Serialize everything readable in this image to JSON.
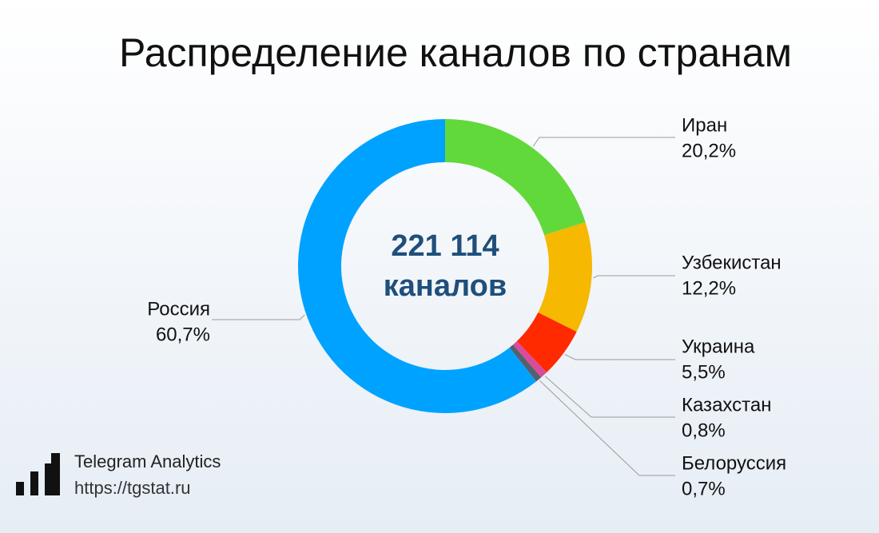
{
  "chart_data": {
    "type": "donut",
    "title": "Распределение каналов по странам",
    "center_label": "221 114",
    "center_sublabel": "каналов",
    "categories": [
      "Иран",
      "Узбекистан",
      "Украина",
      "Казахстан",
      "Белоруссия",
      "Россия"
    ],
    "values": [
      20.2,
      12.2,
      5.5,
      0.8,
      0.7,
      60.7
    ],
    "value_labels": [
      "20,2%",
      "12,2%",
      "5,5%",
      "0,8%",
      "0,7%",
      "60,7%"
    ],
    "colors": [
      "#62d93b",
      "#f6b800",
      "#ff2a00",
      "#d94c9c",
      "#56606c",
      "#00a2ff"
    ]
  },
  "footer": {
    "brand": "Telegram Analytics",
    "url": "https://tgstat.ru"
  }
}
